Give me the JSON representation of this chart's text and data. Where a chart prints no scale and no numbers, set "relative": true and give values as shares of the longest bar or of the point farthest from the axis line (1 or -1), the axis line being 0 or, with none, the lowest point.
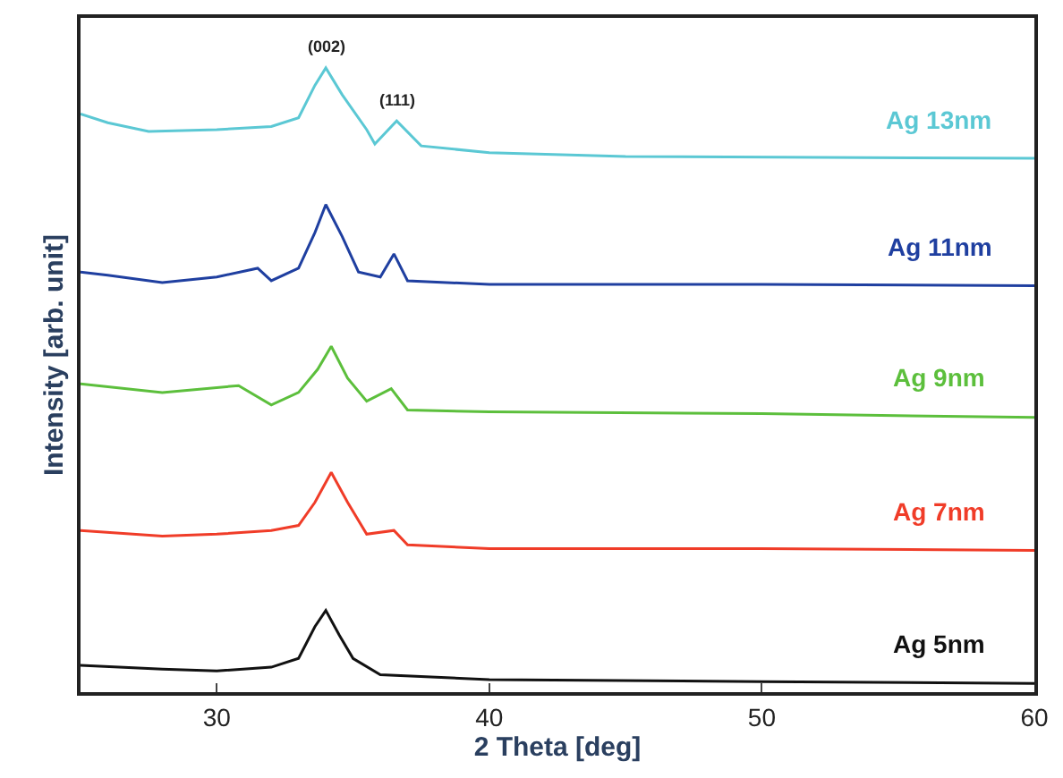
{
  "chart_data": {
    "type": "line",
    "xlabel": "2 Theta [deg]",
    "ylabel": "Intensity [arb. unit]",
    "relative": true,
    "xlim": [
      25,
      60
    ],
    "xticks": [
      30,
      40,
      50,
      60
    ],
    "legend": false,
    "marker": "none",
    "line_style": "solid",
    "annotations": [
      {
        "text": "(002)",
        "x": 34,
        "y": 1.0
      },
      {
        "text": "(111)",
        "x": 36.6,
        "y": 0.915
      }
    ],
    "series": [
      {
        "name": "Ag 13nm",
        "color": "#5bc8d4",
        "x": [
          25,
          26,
          27.5,
          30,
          32,
          33,
          33.6,
          34,
          34.6,
          35.5,
          35.8,
          36.6,
          37.5,
          40,
          45,
          60
        ],
        "values": [
          0.926,
          0.912,
          0.898,
          0.901,
          0.906,
          0.92,
          0.972,
          1.0,
          0.957,
          0.901,
          0.878,
          0.915,
          0.875,
          0.864,
          0.858,
          0.855
        ]
      },
      {
        "name": "Ag 11nm",
        "color": "#1f3fa0",
        "x": [
          25,
          26,
          28,
          30,
          31.5,
          32,
          33,
          33.6,
          34,
          34.6,
          35.2,
          36,
          36.5,
          37,
          40,
          50,
          60
        ],
        "values": [
          0.673,
          0.668,
          0.656,
          0.665,
          0.679,
          0.659,
          0.679,
          0.736,
          0.781,
          0.73,
          0.673,
          0.665,
          0.702,
          0.659,
          0.653,
          0.653,
          0.651
        ]
      },
      {
        "name": "Ag 9nm",
        "color": "#5cbf3c",
        "x": [
          25,
          28,
          30.8,
          32,
          33,
          33.7,
          34.2,
          34.8,
          35.5,
          36.4,
          37,
          40,
          50,
          60
        ],
        "values": [
          0.494,
          0.48,
          0.491,
          0.46,
          0.48,
          0.517,
          0.554,
          0.503,
          0.466,
          0.486,
          0.452,
          0.449,
          0.446,
          0.44
        ]
      },
      {
        "name": "Ag 7nm",
        "color": "#f03c28",
        "x": [
          25,
          28,
          30,
          32,
          33,
          33.6,
          34.2,
          34.8,
          35.5,
          36.5,
          37,
          40,
          50,
          60
        ],
        "values": [
          0.259,
          0.25,
          0.253,
          0.259,
          0.267,
          0.304,
          0.352,
          0.304,
          0.253,
          0.259,
          0.236,
          0.23,
          0.23,
          0.227
        ]
      },
      {
        "name": "Ag 5nm",
        "color": "#111111",
        "x": [
          25,
          28,
          30,
          32,
          33,
          33.6,
          34,
          34.5,
          35,
          36,
          40,
          50,
          60
        ],
        "values": [
          0.043,
          0.037,
          0.034,
          0.04,
          0.054,
          0.105,
          0.131,
          0.091,
          0.054,
          0.028,
          0.02,
          0.017,
          0.014
        ]
      }
    ]
  }
}
